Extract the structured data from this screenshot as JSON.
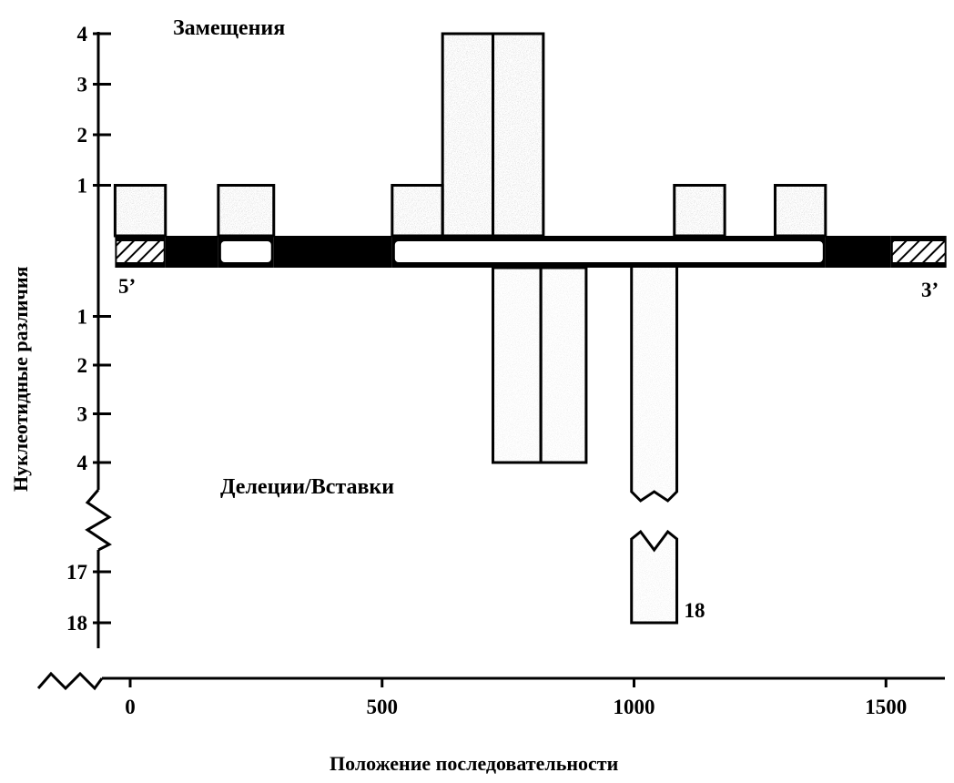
{
  "chart_data": {
    "type": "bar",
    "top_panel_title": "Замещения",
    "bottom_panel_title": "Делеции/Вставки",
    "xlabel": "Положение   последовательности",
    "ylabel": "Нуклеотидные различия",
    "xlim": [
      -20,
      1620
    ],
    "x_ticks": [
      0,
      500,
      1000,
      1500
    ],
    "y_ticks_top": [
      1,
      2,
      3,
      4
    ],
    "y_ticks_bottom": [
      1,
      2,
      3,
      4
    ],
    "y_ticks_bottom_broken": [
      17,
      18
    ],
    "end_labels": {
      "left": "5’",
      "right": "3’"
    },
    "substitutions": [
      {
        "start": -30,
        "end": 70,
        "value": 1
      },
      {
        "start": 175,
        "end": 285,
        "value": 1
      },
      {
        "start": 520,
        "end": 620,
        "value": 1
      },
      {
        "start": 620,
        "end": 720,
        "value": 4
      },
      {
        "start": 720,
        "end": 820,
        "value": 4
      },
      {
        "start": 1080,
        "end": 1180,
        "value": 1
      },
      {
        "start": 1280,
        "end": 1380,
        "value": 1
      }
    ],
    "indels": [
      {
        "start": 720,
        "end": 815,
        "value": 4
      },
      {
        "start": 815,
        "end": 905,
        "value": 4
      },
      {
        "start": 995,
        "end": 1085,
        "value": 18,
        "broken": true,
        "label": "18"
      }
    ],
    "gene_map": [
      {
        "start": -30,
        "end": 70,
        "kind": "hatched"
      },
      {
        "start": 70,
        "end": 175,
        "kind": "filled"
      },
      {
        "start": 175,
        "end": 285,
        "kind": "open"
      },
      {
        "start": 285,
        "end": 520,
        "kind": "filled"
      },
      {
        "start": 520,
        "end": 1380,
        "kind": "open"
      },
      {
        "start": 1380,
        "end": 1510,
        "kind": "filled"
      },
      {
        "start": 1510,
        "end": 1620,
        "kind": "hatched"
      }
    ],
    "colors": {
      "bar_fill": "#c4c4c4",
      "indel_fill": "#e2e2e2",
      "ink": "#000000",
      "paper": "#ffffff"
    }
  }
}
